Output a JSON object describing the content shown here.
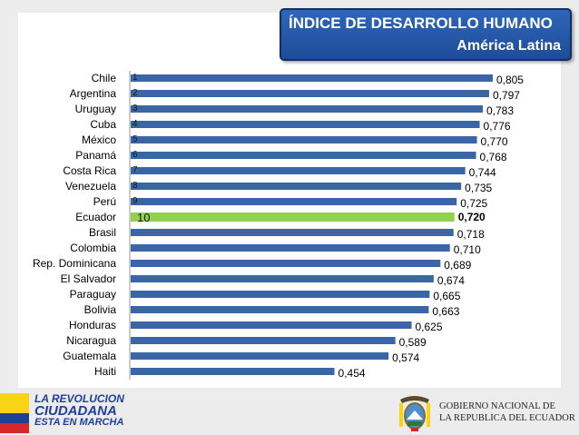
{
  "title": {
    "line1": "ÍNDICE DE DESARROLLO HUMANO",
    "line2": "América Latina"
  },
  "colors": {
    "bar": "#3a66a6",
    "highlight": "#92d050",
    "title_bg": "#2a5aa8"
  },
  "chart_data": {
    "type": "bar",
    "orientation": "horizontal",
    "categories": [
      "Chile",
      "Argentina",
      "Uruguay",
      "Cuba",
      "México",
      "Panamá",
      "Costa Rica",
      "Venezuela",
      "Perú",
      "Ecuador",
      "Brasil",
      "Colombia",
      "Rep. Dominicana",
      "El Salvador",
      "Paraguay",
      "Bolivia",
      "Honduras",
      "Nicaragua",
      "Guatemala",
      "Haiti"
    ],
    "values": [
      0.805,
      0.797,
      0.783,
      0.776,
      0.77,
      0.768,
      0.744,
      0.735,
      0.725,
      0.72,
      0.718,
      0.71,
      0.689,
      0.674,
      0.665,
      0.663,
      0.625,
      0.589,
      0.574,
      0.454
    ],
    "value_labels": [
      "0,805",
      "0,797",
      "0,783",
      "0,776",
      "0,770",
      "0,768",
      "0,744",
      "0,735",
      "0,725",
      "0,720",
      "0,718",
      "0,710",
      "0,689",
      "0,674",
      "0,665",
      "0,663",
      "0,625",
      "0,589",
      "0,574",
      "0,454"
    ],
    "rank_labels": [
      "1",
      "2",
      "3",
      "4",
      "5",
      "6",
      "7",
      "8",
      "9",
      "10"
    ],
    "highlight_index": 9,
    "xlim": [
      0,
      0.85
    ],
    "grid": false,
    "legend": "none"
  },
  "footer": {
    "logo_line1": "LA REVOLUCION",
    "logo_line2": "CIUDADANA",
    "logo_line3": "ESTA EN MARCHA",
    "gov_line1": "GOBIERNO NACIONAL DE",
    "gov_line2": "LA REPUBLICA DEL ECUADOR"
  }
}
